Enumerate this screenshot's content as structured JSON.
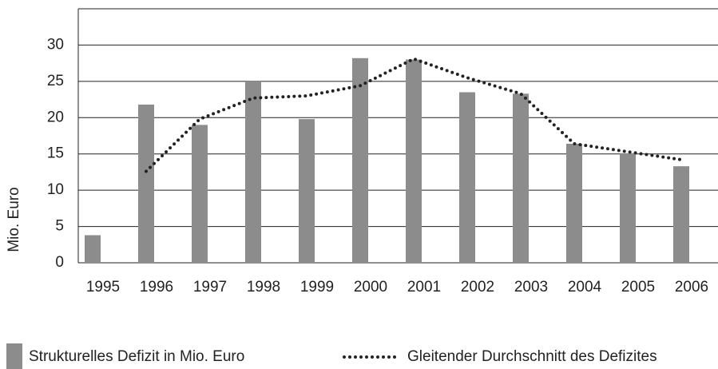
{
  "chart_data": {
    "type": "bar",
    "y_label": "Mio. Euro",
    "categories": [
      "1995",
      "1996",
      "1997",
      "1998",
      "1999",
      "2000",
      "2001",
      "2002",
      "2003",
      "2004",
      "2005",
      "2006"
    ],
    "series": [
      {
        "name": "Strukturelles Defizit in Mio. Euro",
        "type": "bar",
        "color": "#8c8c8c",
        "values": [
          3.8,
          21.8,
          19.0,
          25.0,
          19.8,
          28.2,
          28.0,
          23.5,
          23.3,
          16.4,
          15.1,
          13.3
        ]
      },
      {
        "name": "Gleitender Durchschnitt des Defizites",
        "type": "line",
        "color": "#222222",
        "values": [
          null,
          12.6,
          19.8,
          22.7,
          23.0,
          24.4,
          28.1,
          25.5,
          23.3,
          16.4,
          15.3,
          14.2
        ]
      }
    ],
    "ylim": [
      0,
      35
    ],
    "yticks": [
      0,
      5,
      10,
      15,
      20,
      25,
      30
    ],
    "grid": true,
    "legend": "bottom"
  }
}
